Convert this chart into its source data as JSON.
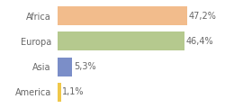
{
  "categories": [
    "Africa",
    "Europa",
    "Asia",
    "America"
  ],
  "values": [
    47.2,
    46.4,
    5.3,
    1.1
  ],
  "labels": [
    "47,2%",
    "46,4%",
    "5,3%",
    "1,1%"
  ],
  "bar_colors": [
    "#f2bc8c",
    "#b5c98e",
    "#7b8ec8",
    "#f0c84a"
  ],
  "background_color": "#ffffff",
  "xlim": [
    0,
    60
  ],
  "bar_height": 0.75,
  "label_fontsize": 7,
  "category_fontsize": 7,
  "text_color": "#666666"
}
